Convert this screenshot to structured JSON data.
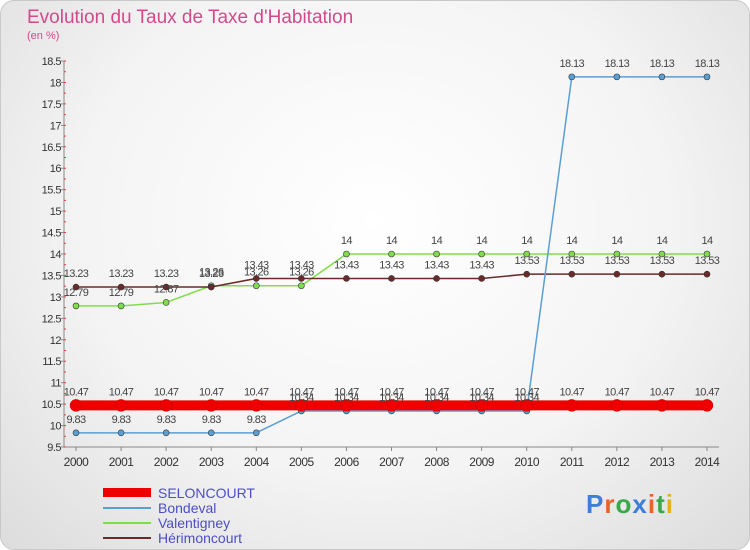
{
  "title": "Evolution du Taux de Taxe d'Habitation",
  "unit": "(en %)",
  "logo": {
    "text": "Proxiti",
    "letters": [
      "P",
      "r",
      "o",
      "x",
      "i",
      "t",
      "i"
    ],
    "colors": [
      "#3b7fd6",
      "#e8622a",
      "#38a84a",
      "#3b7fd6",
      "#e8622a",
      "#38a84a",
      "#e8b020"
    ]
  },
  "chart_data": {
    "type": "line",
    "title": "Evolution du Taux de Taxe d'Habitation",
    "ylabel": "(en %)",
    "xlabel": "",
    "ylim": [
      9.5,
      18.5
    ],
    "yticks": [
      "9.5",
      "10",
      "10.5",
      "11",
      "11.5",
      "12",
      "12.5",
      "13",
      "13.5",
      "14",
      "14.5",
      "15",
      "15.5",
      "16",
      "16.5",
      "17",
      "17.5",
      "18",
      "18.5"
    ],
    "categories": [
      "2000",
      "2001",
      "2002",
      "2003",
      "2004",
      "2005",
      "2006",
      "2007",
      "2008",
      "2009",
      "2010",
      "2011",
      "2012",
      "2013",
      "2014"
    ],
    "grid": false,
    "legend": "bottom-left",
    "series": [
      {
        "name": "SELONCOURT",
        "color": "#ee0000",
        "values": [
          10.47,
          10.47,
          10.47,
          10.47,
          10.47,
          10.47,
          10.47,
          10.47,
          10.47,
          10.47,
          10.47,
          10.47,
          10.47,
          10.47,
          10.47
        ],
        "labels": [
          "10.47",
          "10.47",
          "10.47",
          "10.47",
          "10.47",
          "10.47",
          "10.47",
          "10.47",
          "10.47",
          "10.47",
          "10.47",
          "10.47",
          "10.47",
          "10.47",
          "10.47"
        ]
      },
      {
        "name": "Bondeval",
        "color": "#5a9fd4",
        "values": [
          9.83,
          9.83,
          9.83,
          9.83,
          9.83,
          10.34,
          10.34,
          10.34,
          10.34,
          10.34,
          10.34,
          18.13,
          18.13,
          18.13,
          18.13
        ],
        "labels": [
          "9.83",
          "9.83",
          "9.83",
          "9.83",
          "9.83",
          "10.34",
          "10.34",
          "10.34",
          "10.34",
          "10.34",
          "10.34",
          "18.13",
          "18.13",
          "18.13",
          "18.13"
        ]
      },
      {
        "name": "Valentigney",
        "color": "#80dd4a",
        "values": [
          12.79,
          12.79,
          12.87,
          13.26,
          13.26,
          13.26,
          14,
          14,
          14,
          14,
          14,
          14,
          14,
          14,
          14
        ],
        "labels": [
          "12.79",
          "12.79",
          "12.87",
          "13.26",
          "13.26",
          "13.26",
          "14",
          "14",
          "14",
          "14",
          "14",
          "14",
          "14",
          "14",
          "14"
        ]
      },
      {
        "name": "Hérimoncourt",
        "color": "#6b2a2a",
        "values": [
          13.23,
          13.23,
          13.23,
          13.23,
          13.43,
          13.43,
          13.43,
          13.43,
          13.43,
          13.43,
          13.53,
          13.53,
          13.53,
          13.53,
          13.53
        ],
        "labels": [
          "13.23",
          "13.23",
          "13.23",
          "13.23",
          "13.43",
          "13.43",
          "13.43",
          "13.43",
          "13.43",
          "13.43",
          "13.53",
          "13.53",
          "13.53",
          "13.53",
          "13.53"
        ]
      }
    ]
  }
}
